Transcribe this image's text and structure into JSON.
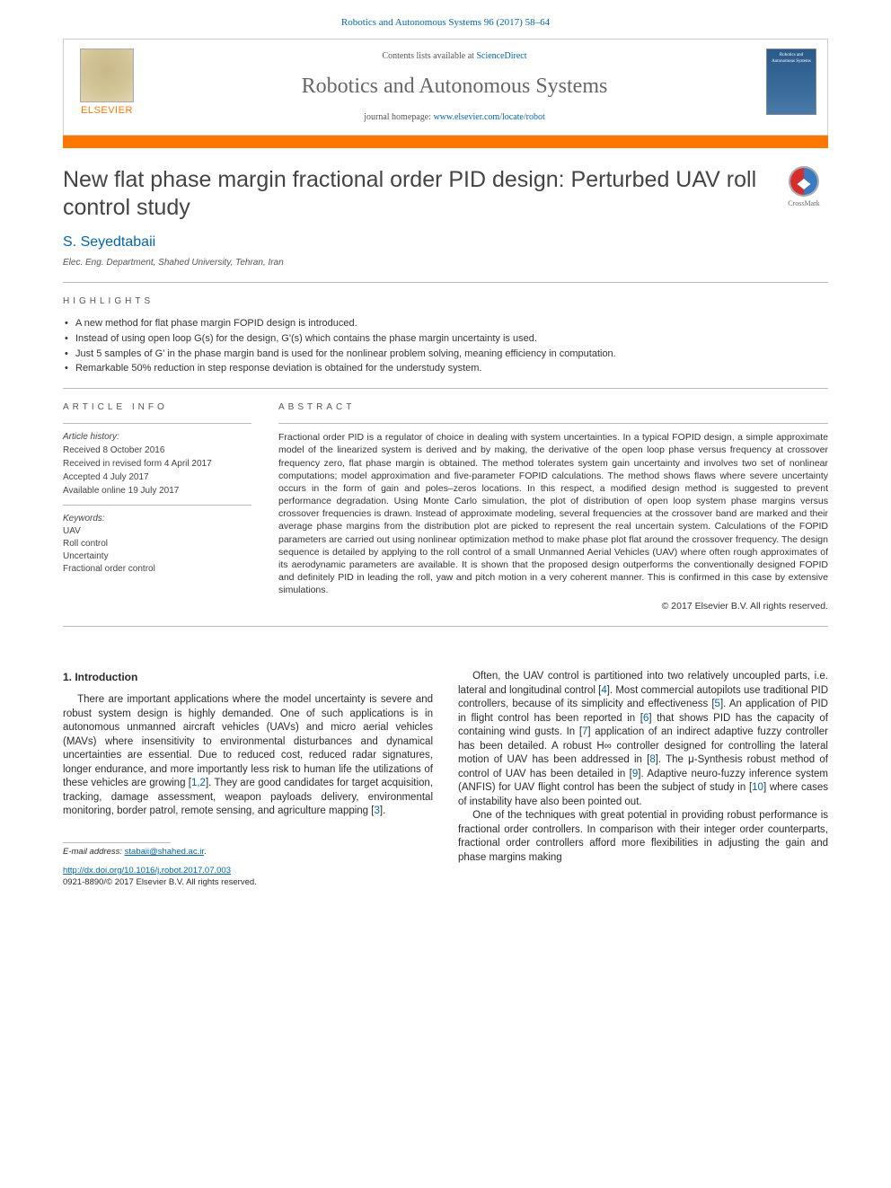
{
  "header": {
    "running_head": "Robotics and Autonomous Systems 96 (2017) 58–64",
    "contents_prefix": "Contents lists available at ",
    "contents_link": "ScienceDirect",
    "journal_name": "Robotics and Autonomous Systems",
    "homepage_prefix": "journal homepage: ",
    "homepage_link": "www.elsevier.com/locate/robot",
    "publisher_wordmark": "ELSEVIER",
    "cover_thumb_text": "Robotics and Autonomous Systems",
    "colors": {
      "accent": "#ff7700",
      "link": "#0066aa",
      "rule": "#bbbbbb",
      "text": "#2a2a2a",
      "muted": "#555555"
    }
  },
  "crossmark": {
    "label": "CrossMark"
  },
  "title": "New flat phase margin fractional order PID design: Perturbed UAV roll control study",
  "authors": "S. Seyedtabaii",
  "affiliation": "Elec. Eng. Department, Shahed University, Tehran, Iran",
  "highlights": {
    "heading": "highlights",
    "items": [
      "A new method for flat phase margin FOPID design is introduced.",
      "Instead of using open loop G(s) for the design, G'(s) which contains the phase margin uncertainty is used.",
      "Just 5 samples of G' in the phase margin band is used for the nonlinear problem solving, meaning efficiency in computation.",
      "Remarkable 50% reduction in step response deviation is obtained for the understudy system."
    ]
  },
  "article_info": {
    "heading": "article info",
    "history_label": "Article history:",
    "history": [
      "Received 8 October 2016",
      "Received in revised form 4 April 2017",
      "Accepted 4 July 2017",
      "Available online 19 July 2017"
    ],
    "keywords_label": "Keywords:",
    "keywords": [
      "UAV",
      "Roll control",
      "Uncertainty",
      "Fractional order control"
    ]
  },
  "abstract": {
    "heading": "abstract",
    "text": "Fractional order PID is a regulator of choice in dealing with system uncertainties. In a typical FOPID design, a simple approximate model of the linearized system is derived and by making, the derivative of the open loop phase versus frequency at crossover frequency zero, flat phase margin is obtained. The method tolerates system gain uncertainty and involves two set of nonlinear computations; model approximation and five-parameter FOPID calculations. The method shows flaws where severe uncertainty occurs in the form of gain and poles–zeros locations. In this respect, a modified design method is suggested to prevent performance degradation. Using Monte Carlo simulation, the plot of distribution of open loop system phase margins versus crossover frequencies is drawn. Instead of approximate modeling, several frequencies at the crossover band are marked and their average phase margins from the distribution plot are picked to represent the real uncertain system. Calculations of the FOPID parameters are carried out using nonlinear optimization method to make phase plot flat around the crossover frequency. The design sequence is detailed by applying to the roll control of a small Unmanned Aerial Vehicles (UAV) where often rough approximates of its aerodynamic parameters are available. It is shown that the proposed design outperforms the conventionally designed FOPID and definitely PID in leading the roll, yaw and pitch motion in a very coherent manner. This is confirmed in this case by extensive simulations.",
    "copyright": "© 2017 Elsevier B.V. All rights reserved."
  },
  "body": {
    "intro_heading": "1. Introduction",
    "col1_p1": "There are important applications where the model uncertainty is severe and robust system design is highly demanded. One of such applications is in autonomous unmanned aircraft vehicles (UAVs) and micro aerial vehicles (MAVs) where insensitivity to environmental disturbances and dynamical uncertainties are essential. Due to reduced cost, reduced radar signatures, longer endurance, and more importantly less risk to human life the utilizations of these vehicles are growing [1,2]. They are good candidates for target acquisition, tracking, damage assessment, weapon payloads delivery, environmental monitoring, border patrol, remote sensing, and agriculture mapping [3].",
    "col2_p1": "Often, the UAV control is partitioned into two relatively uncoupled parts, i.e. lateral and longitudinal control [4]. Most commercial autopilots use traditional PID controllers, because of its simplicity and effectiveness [5]. An application of PID in flight control has been reported in [6] that shows PID has the capacity of containing wind gusts. In [7] application of an indirect adaptive fuzzy controller has been detailed. A robust H∞ controller designed for controlling the lateral motion of UAV has been addressed in [8]. The μ-Synthesis robust method of control of UAV has been detailed in [9]. Adaptive neuro-fuzzy inference system (ANFIS) for UAV flight control has been the subject of study in [10] where cases of instability have also been pointed out.",
    "col2_p2": "One of the techniques with great potential in providing robust performance is fractional order controllers. In comparison with their integer order counterparts, fractional order controllers afford more flexibilities in adjusting the gain and phase margins making"
  },
  "footer": {
    "email_label": "E-mail address: ",
    "email": "stabaii@shahed.ac.ir",
    "doi": "http://dx.doi.org/10.1016/j.robot.2017.07.003",
    "issn_line": "0921-8890/© 2017 Elsevier B.V. All rights reserved."
  },
  "typography": {
    "title_fontsize": 25,
    "body_fontsize": 11.5,
    "abstract_fontsize": 10.5,
    "info_fontsize": 10,
    "heading_letterspacing": 4
  }
}
